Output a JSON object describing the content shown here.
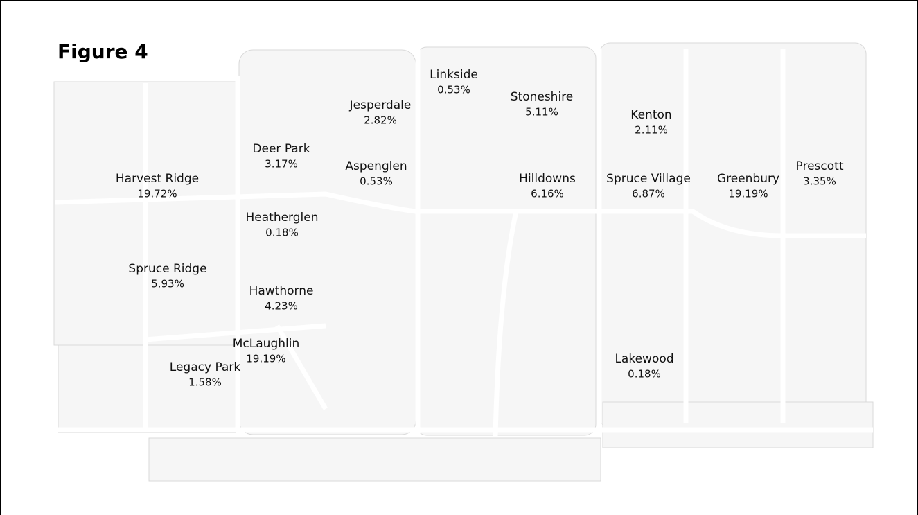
{
  "title": "Figure 4",
  "neighborhoods": [
    {
      "name": "Linkside",
      "share": "0.53%"
    },
    {
      "name": "Stoneshire",
      "share": "5.11%"
    },
    {
      "name": "Jesperdale",
      "share": "2.82%"
    },
    {
      "name": "Kenton",
      "share": "2.11%"
    },
    {
      "name": "Deer Park",
      "share": "3.17%"
    },
    {
      "name": "Aspenglen",
      "share": "0.53%"
    },
    {
      "name": "Harvest Ridge",
      "share": "19.72%"
    },
    {
      "name": "Hilldowns",
      "share": "6.16%"
    },
    {
      "name": "Spruce Village",
      "share": "6.87%"
    },
    {
      "name": "Greenbury",
      "share": "19.19%"
    },
    {
      "name": "Prescott",
      "share": "3.35%"
    },
    {
      "name": "Heatherglen",
      "share": "0.18%"
    },
    {
      "name": "Spruce Ridge",
      "share": "5.93%"
    },
    {
      "name": "Hawthorne",
      "share": "4.23%"
    },
    {
      "name": "McLaughlin",
      "share": "19.19%"
    },
    {
      "name": "Legacy Park",
      "share": "1.58%"
    },
    {
      "name": "Lakewood",
      "share": "0.18%"
    }
  ]
}
